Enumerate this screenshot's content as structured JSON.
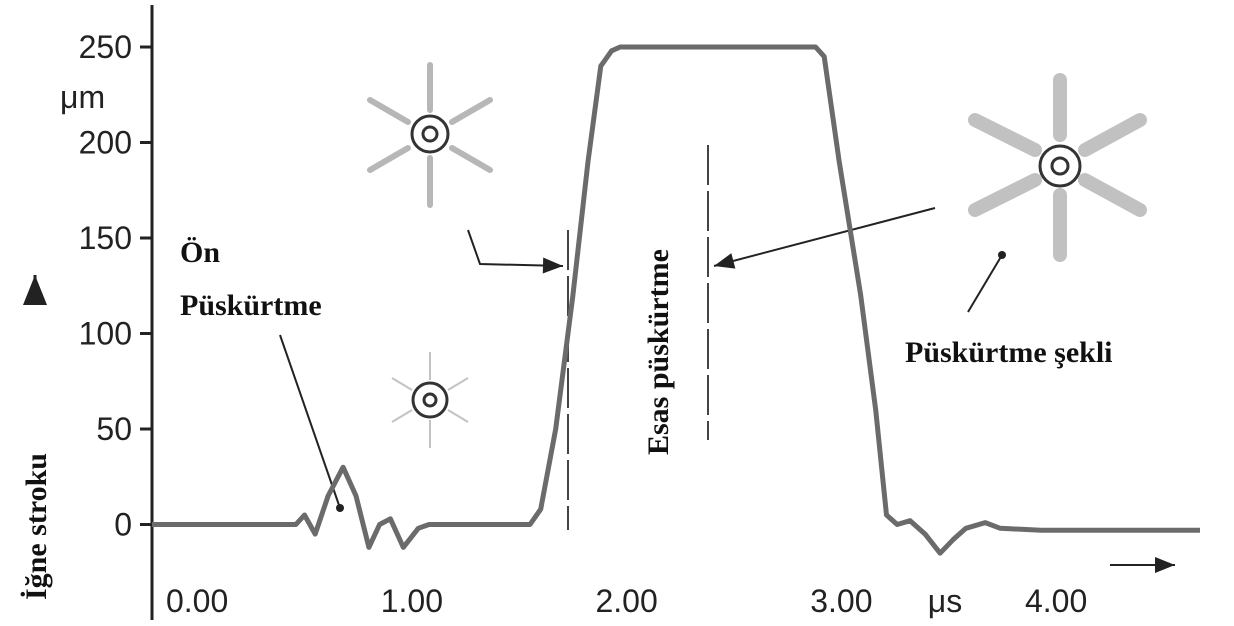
{
  "chart_data": {
    "type": "line",
    "ylabel": "İğne stroku",
    "y_unit": "μm",
    "x_unit": "μs",
    "annotations": [
      "Ön",
      "Püskürtme",
      "Esas püskürtme",
      "Püskürtme şekli"
    ],
    "color": "#6b6b6b",
    "x": [
      -0.21,
      0.46,
      0.5,
      0.55,
      0.61,
      0.68,
      0.74,
      0.8,
      0.85,
      0.9,
      0.96,
      1.03,
      1.08,
      1.55,
      1.6,
      1.67,
      1.75,
      1.82,
      1.88,
      1.93,
      1.97,
      2.88,
      2.92,
      2.99,
      3.09,
      3.16,
      3.21,
      3.26,
      3.32,
      3.39,
      3.46,
      3.52,
      3.58,
      3.67,
      3.74,
      3.93,
      4.67
    ],
    "values": [
      0,
      0,
      5,
      -5,
      15,
      30,
      15,
      -12,
      0,
      3,
      -12,
      -2,
      0,
      0,
      8,
      50,
      120,
      190,
      240,
      248,
      250,
      250,
      245,
      190,
      120,
      60,
      5,
      0,
      2,
      -5,
      -15,
      -8,
      -2,
      1,
      -2,
      -3,
      -3
    ],
    "xlim": [
      -0.21,
      4.67
    ],
    "ylim": [
      -50,
      272
    ],
    "xticks": [
      {
        "value": 0,
        "label": "0.00"
      },
      {
        "value": 1,
        "label": "1.00"
      },
      {
        "value": 2,
        "label": "2.00"
      },
      {
        "value": 3,
        "label": "3.00"
      },
      {
        "value": 4,
        "label": "4.00"
      }
    ],
    "yticks": [
      0,
      50,
      100,
      150,
      200,
      250
    ]
  }
}
